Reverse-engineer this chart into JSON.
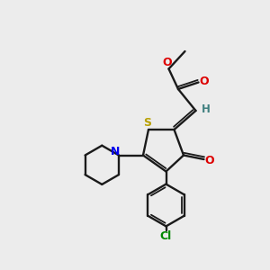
{
  "background_color": "#ececec",
  "bond_color": "#1a1a1a",
  "sulfur_color": "#b8a000",
  "nitrogen_color": "#0000ee",
  "oxygen_color": "#dd0000",
  "chlorine_color": "#008800",
  "hydrogen_color": "#408080",
  "figsize": [
    3.0,
    3.0
  ],
  "dpi": 100,
  "xlim": [
    0,
    10
  ],
  "ylim": [
    0,
    10
  ]
}
